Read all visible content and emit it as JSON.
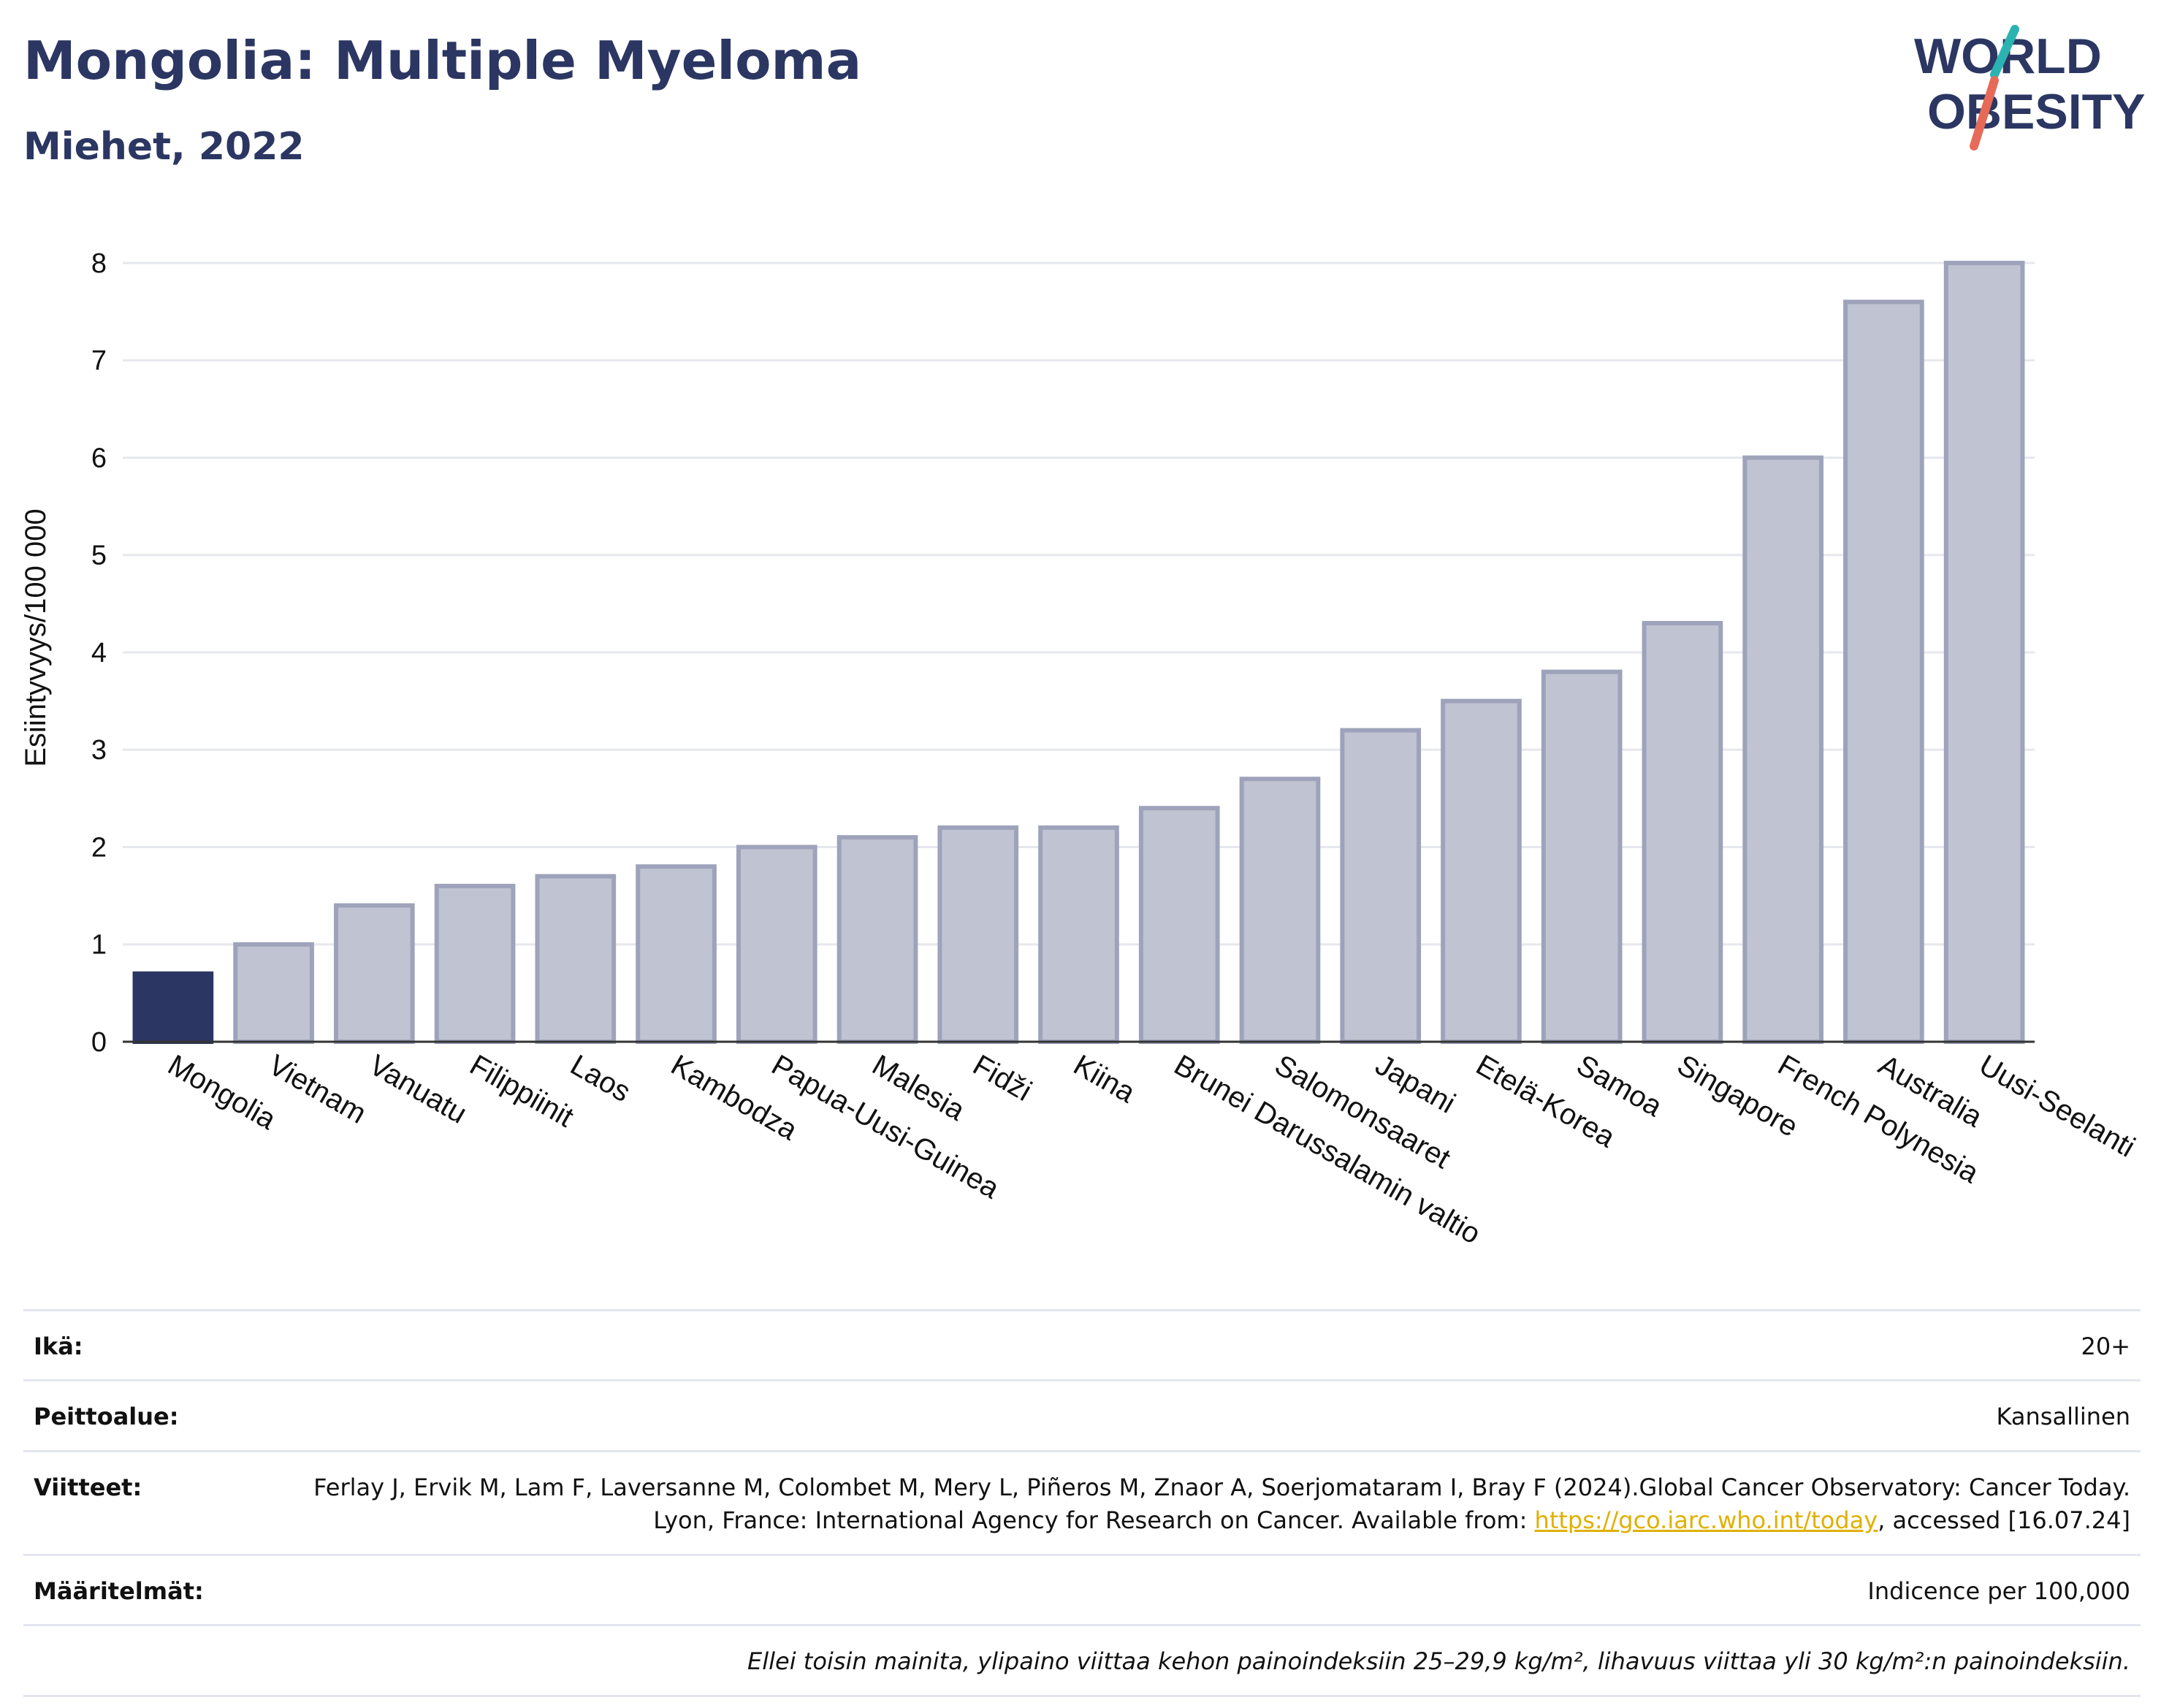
{
  "header": {
    "title": "Mongolia: Multiple Myeloma",
    "subtitle": "Miehet, 2022",
    "logo_line1": "WORLD",
    "logo_line2": "OBESITY"
  },
  "chart_data": {
    "type": "bar",
    "title": "Mongolia: Multiple Myeloma",
    "subtitle": "Miehet, 2022",
    "xlabel": "",
    "ylabel": "Esiintyvyys/100 000",
    "ylim": [
      0,
      8.3
    ],
    "yticks": [
      0,
      1,
      2,
      3,
      4,
      5,
      6,
      7,
      8
    ],
    "grid": true,
    "categories": [
      "Mongolia",
      "Vietnam",
      "Vanuatu",
      "Filippiinit",
      "Laos",
      "Kambodza",
      "Papua-Uusi-Guinea",
      "Malesia",
      "Fidži",
      "Kiina",
      "Brunei Darussalamin valtio",
      "Salomonsaaret",
      "Japani",
      "Etelä-Korea",
      "Samoa",
      "Singapore",
      "French Polynesia",
      "Australia",
      "Uusi-Seelanti"
    ],
    "values": [
      0.7,
      1.0,
      1.4,
      1.6,
      1.7,
      1.8,
      2.0,
      2.1,
      2.2,
      2.2,
      2.4,
      2.7,
      3.2,
      3.5,
      3.8,
      4.3,
      6.0,
      7.6,
      8.0
    ],
    "highlight": "Mongolia",
    "colors": {
      "highlight": "#2b3662",
      "bar": "#c0c3d1",
      "bar_stroke": "#9ea3bb",
      "axis": "#333333",
      "grid": "#e6e8ee"
    }
  },
  "info": {
    "age_label": "Ikä:",
    "age_value": "20+",
    "coverage_label": "Peittoalue:",
    "coverage_value": "Kansallinen",
    "refs_label": "Viitteet:",
    "refs_text_1": "Ferlay J, Ervik M, Lam F, Laversanne M, Colombet M, Mery L, Piñeros M, Znaor A, Soerjomataram I, Bray F (2024).Global Cancer Observatory: Cancer Today. Lyon, France: International Agency for Research on Cancer. Available from: ",
    "refs_link": "https://gco.iarc.who.int/today",
    "refs_text_2": ", accessed [16.07.24]",
    "definitions_label": "Määritelmät:",
    "definitions_value": "Indicence per 100,000",
    "note": "Ellei toisin mainita, ylipaino viittaa kehon painoindeksiin 25–29,9 kg/m², lihavuus viittaa yli 30 kg/m²:n painoindeksiin."
  }
}
